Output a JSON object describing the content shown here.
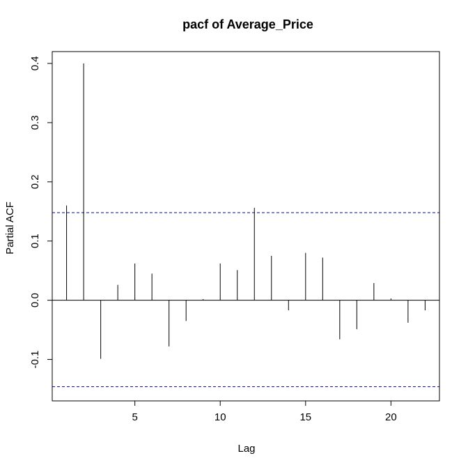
{
  "chart_data": {
    "type": "bar",
    "title": "pacf of Average_Price",
    "xlabel": "Lag",
    "ylabel": "Partial ACF",
    "xlim": [
      0.16,
      22.84
    ],
    "ylim": [
      -0.17,
      0.42
    ],
    "x_ticks": [
      5,
      10,
      15,
      20
    ],
    "y_ticks": [
      -0.1,
      0.0,
      0.1,
      0.2,
      0.3,
      0.4
    ],
    "x_tick_labels": [
      "5",
      "10",
      "15",
      "20"
    ],
    "y_tick_labels": [
      "-0.1",
      "0.0",
      "0.1",
      "0.2",
      "0.3",
      "0.4"
    ],
    "lags": [
      1,
      2,
      3,
      4,
      5,
      6,
      7,
      8,
      9,
      10,
      11,
      12,
      13,
      14,
      15,
      16,
      17,
      18,
      19,
      20,
      21,
      22
    ],
    "values": [
      0.16,
      0.4,
      -0.099,
      0.026,
      0.062,
      0.045,
      -0.078,
      -0.035,
      0.002,
      0.062,
      0.051,
      0.156,
      0.075,
      -0.017,
      0.08,
      0.072,
      -0.066,
      -0.049,
      0.029,
      0.003,
      -0.038,
      -0.017
    ],
    "confidence_limits": [
      0.148,
      -0.146
    ],
    "grid": false,
    "colors": {
      "bars": "#000000",
      "confidence_lines": "#00008b"
    }
  }
}
